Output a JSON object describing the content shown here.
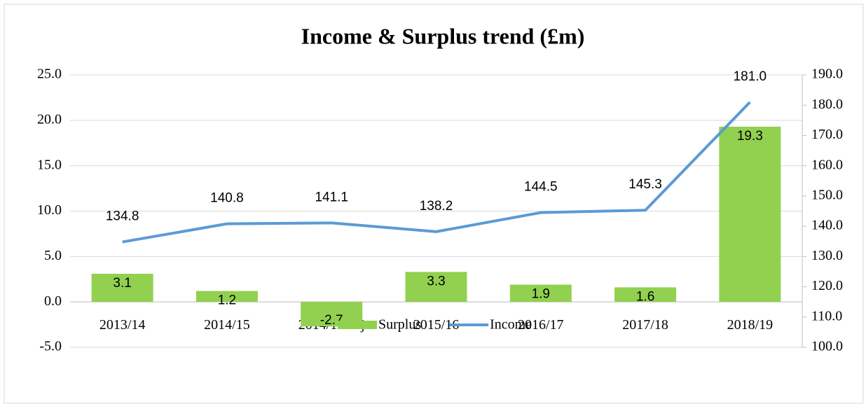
{
  "chart_data": {
    "type": "bar",
    "title": "Income & Surplus trend (£m)",
    "categories": [
      "2013/14",
      "2014/15",
      "2014/15 adj",
      "2015/16",
      "2016/17",
      "2017/18",
      "2018/19"
    ],
    "series": [
      {
        "name": "Surplus",
        "type": "bar",
        "color": "#92d050",
        "axis": "y",
        "values": [
          3.1,
          1.2,
          -2.7,
          3.3,
          1.9,
          1.6,
          19.3
        ],
        "value_labels": [
          "3.1",
          "1.2",
          "-2.7",
          "3.3",
          "1.9",
          "1.6",
          "19.3"
        ]
      },
      {
        "name": "Income",
        "type": "line",
        "color": "#5b9bd5",
        "axis": "y2",
        "values": [
          134.8,
          140.8,
          141.1,
          138.2,
          144.5,
          145.3,
          181.0
        ],
        "value_labels": [
          "134.8",
          "140.8",
          "141.1",
          "138.2",
          "144.5",
          "145.3",
          "181.0"
        ]
      }
    ],
    "ylim": [
      -5,
      25
    ],
    "yticks": [
      {
        "value": -5,
        "label": "-5.0"
      },
      {
        "value": 0,
        "label": "0.0"
      },
      {
        "value": 5,
        "label": "5.0"
      },
      {
        "value": 10,
        "label": "10.0"
      },
      {
        "value": 15,
        "label": "15.0"
      },
      {
        "value": 20,
        "label": "20.0"
      },
      {
        "value": 25,
        "label": "25.0"
      }
    ],
    "y2lim": [
      100,
      190
    ],
    "y2ticks": [
      {
        "value": 100,
        "label": "100.0"
      },
      {
        "value": 110,
        "label": "110.0"
      },
      {
        "value": 120,
        "label": "120.0"
      },
      {
        "value": 130,
        "label": "130.0"
      },
      {
        "value": 140,
        "label": "140.0"
      },
      {
        "value": 150,
        "label": "150.0"
      },
      {
        "value": 160,
        "label": "160.0"
      },
      {
        "value": 170,
        "label": "170.0"
      },
      {
        "value": 180,
        "label": "180.0"
      },
      {
        "value": 190,
        "label": "190.0"
      }
    ],
    "grid": true,
    "legend": "bottom"
  }
}
